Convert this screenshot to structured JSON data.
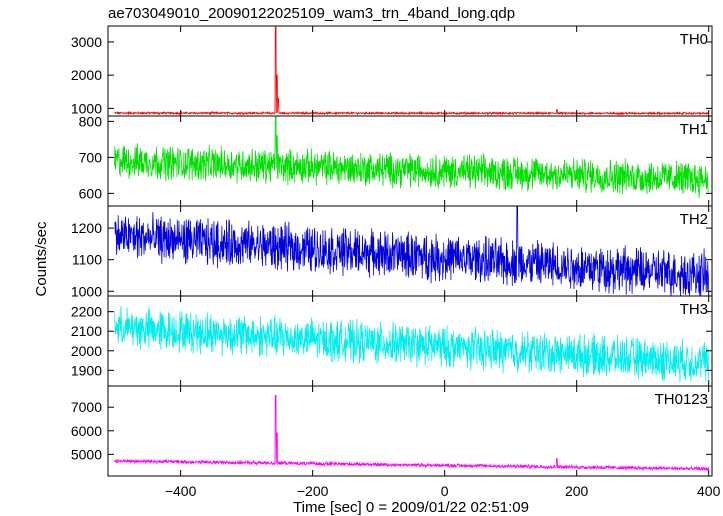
{
  "chart_data": {
    "type": "line",
    "title": "ae703049010_20090122025109_wam3_trn_4band_long.qdp",
    "xlabel": "Time [sec] 0 = 2009/01/22 02:51:09",
    "ylabel": "Counts/sec",
    "xlim": [
      -510,
      405
    ],
    "x_ticks": [
      -400,
      -200,
      0,
      200,
      400
    ],
    "x_tick_labels": [
      "−400",
      "−200",
      "0",
      "200",
      "400"
    ],
    "grid": false,
    "panels": [
      {
        "name": "TH0",
        "color": "#ff0000",
        "ylim": [
          770,
          3480
        ],
        "y_ticks": [
          1000,
          2000,
          3000
        ],
        "y_tick_labels": [
          "1000",
          "2000",
          "3000"
        ],
        "trend": [
          [
            -500,
            860
          ],
          [
            400,
            850
          ]
        ],
        "noise": 35,
        "spikes": [
          [
            -256,
            3450
          ],
          [
            -254,
            2000
          ],
          [
            -252,
            1300
          ],
          [
            170,
            960
          ]
        ]
      },
      {
        "name": "TH1",
        "color": "#00e000",
        "ylim": [
          565,
          815
        ],
        "y_ticks": [
          600,
          700,
          800
        ],
        "y_tick_labels": [
          "600",
          "700",
          "800"
        ],
        "trend": [
          [
            -500,
            690
          ],
          [
            400,
            640
          ]
        ],
        "noise": 55,
        "spikes": [
          [
            -256,
            820
          ],
          [
            -254,
            760
          ]
        ]
      },
      {
        "name": "TH2",
        "color": "#0000dd",
        "ylim": [
          985,
          1270
        ],
        "y_ticks": [
          1000,
          1100,
          1200
        ],
        "y_tick_labels": [
          "1000",
          "1100",
          "1200"
        ],
        "trend": [
          [
            -500,
            1175
          ],
          [
            400,
            1050
          ]
        ],
        "noise": 85,
        "spikes": [
          [
            110,
            1270
          ]
        ]
      },
      {
        "name": "TH3",
        "color": "#00eeee",
        "ylim": [
          1820,
          2280
        ],
        "y_ticks": [
          1900,
          2000,
          2100,
          2200
        ],
        "y_tick_labels": [
          "1900",
          "2000",
          "2100",
          "2200"
        ],
        "trend": [
          [
            -500,
            2120
          ],
          [
            400,
            1940
          ]
        ],
        "noise": 120,
        "spikes": []
      },
      {
        "name": "TH0123",
        "color": "#ff00ff",
        "ylim": [
          4080,
          7900
        ],
        "y_ticks": [
          5000,
          6000,
          7000
        ],
        "y_tick_labels": [
          "5000",
          "6000",
          "7000"
        ],
        "trend": [
          [
            -500,
            4720
          ],
          [
            400,
            4380
          ]
        ],
        "noise": 90,
        "spikes": [
          [
            -256,
            7500
          ],
          [
            -254,
            5900
          ],
          [
            170,
            4820
          ]
        ]
      }
    ]
  }
}
